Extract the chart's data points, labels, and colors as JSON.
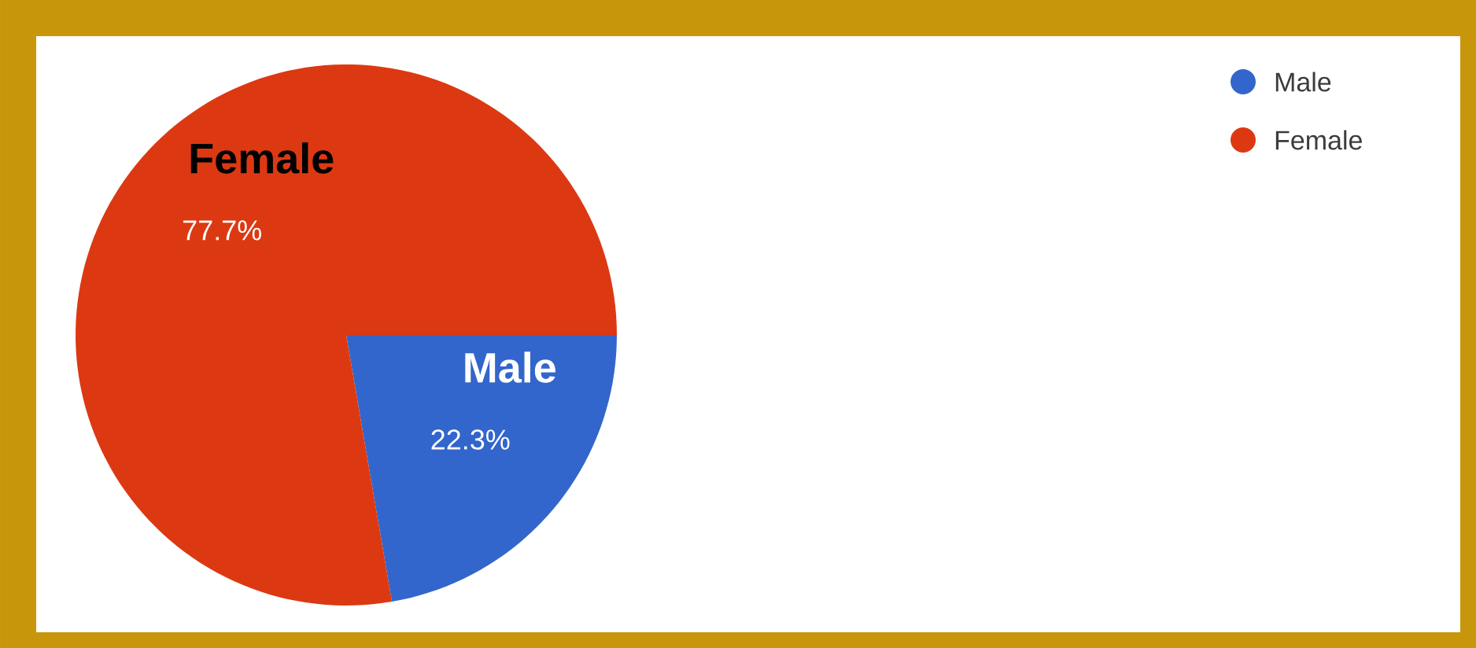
{
  "chart_data": {
    "type": "pie",
    "categories": [
      "Male",
      "Female"
    ],
    "values": [
      22.3,
      77.7
    ],
    "colors": [
      "#3366cc",
      "#dc3912"
    ],
    "value_labels": [
      "22.3%",
      "77.7%"
    ],
    "legend": "top right"
  }
}
